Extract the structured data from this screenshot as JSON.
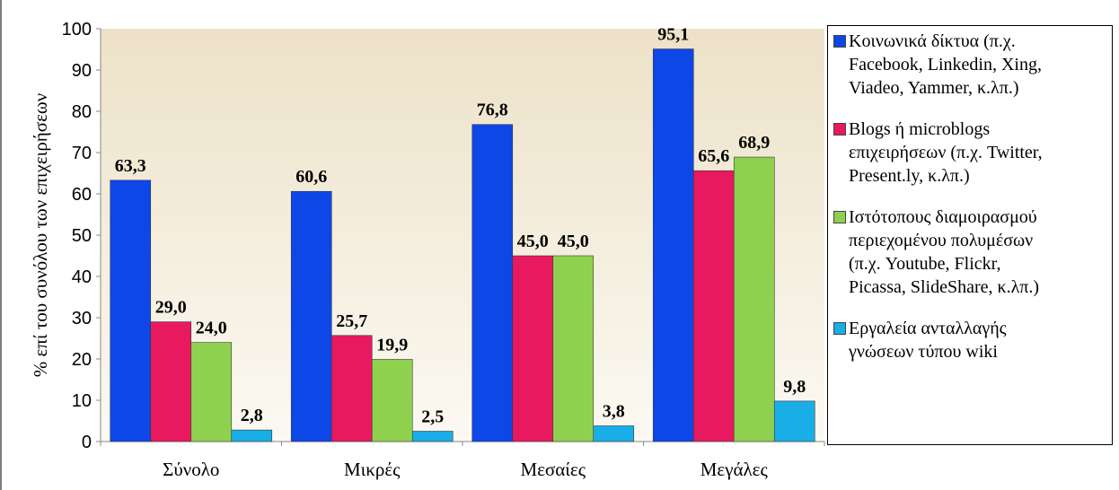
{
  "chart_data": {
    "type": "bar",
    "title": "",
    "ylabel": "% επί του συνόλου των επιχειρήσεων",
    "xlabel": "",
    "ylim": [
      0,
      100
    ],
    "yticks": [
      "0",
      "10",
      "20",
      "30",
      "40",
      "50",
      "60",
      "70",
      "80",
      "90",
      "100"
    ],
    "categories": [
      "Σύνολο",
      "Μικρές",
      "Μεσαίες",
      "Μεγάλες"
    ],
    "grid": "none",
    "legend_position": "right",
    "series": [
      {
        "name": "Κοινωνικά δίκτυα (π.χ. Facebook, Linkedin, Xing, Viadeo, Yammer, κ.λπ.)",
        "color": "#0D47E8",
        "values": [
          63.3,
          60.6,
          76.8,
          95.1
        ],
        "labels": [
          "63,3",
          "60,6",
          "76,8",
          "95,1"
        ]
      },
      {
        "name": "Blogs ή microblogs επιχειρήσεων (π.χ. Twitter, Present.ly, κ.λπ.)",
        "color": "#E8195F",
        "values": [
          29.0,
          25.7,
          45.0,
          65.6
        ],
        "labels": [
          "29,0",
          "25,7",
          "45,0",
          "65,6"
        ]
      },
      {
        "name": "Ιστότοπους διαμοιρασμού περιεχομένου πολυμέσων (π.χ. Youtube, Flickr, Picassa, SlideShare, κ.λπ.)",
        "color": "#8FD14F",
        "values": [
          24.0,
          19.9,
          45.0,
          68.9
        ],
        "labels": [
          "24,0",
          "19,9",
          "45,0",
          "68,9"
        ]
      },
      {
        "name": "Εργαλεία ανταλλαγής γνώσεων τύπου wiki",
        "color": "#19AEE8",
        "values": [
          2.8,
          2.5,
          3.8,
          9.8
        ],
        "labels": [
          "2,8",
          "2,5",
          "3,8",
          "9,8"
        ]
      }
    ],
    "plot_background": [
      "#EDE2C8",
      "#FBF9F2"
    ]
  },
  "legend": {
    "items": [
      {
        "lines": [
          "Κοινωνικά δίκτυα (π.χ.",
          "Facebook, Linkedin, Xing,",
          "Viadeo, Yammer, κ.λπ.)"
        ]
      },
      {
        "lines": [
          "Blogs ή microblogs",
          "επιχειρήσεων (π.χ. Twitter,",
          "Present.ly, κ.λπ.)"
        ]
      },
      {
        "lines": [
          "Ιστότοπους διαμοιρασμού",
          "περιεχομένου πολυμέσων",
          "(π.χ. Youtube, Flickr,",
          "Picassa, SlideShare, κ.λπ.)"
        ]
      },
      {
        "lines": [
          "Εργαλεία ανταλλαγής",
          "γνώσεων τύπου wiki"
        ]
      }
    ]
  }
}
